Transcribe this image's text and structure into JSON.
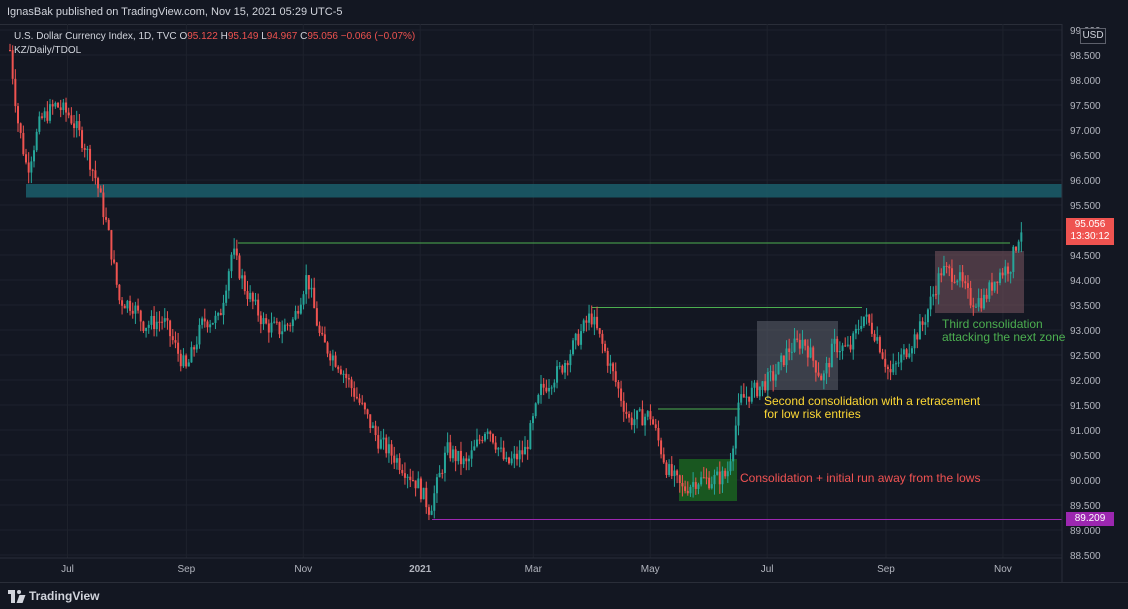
{
  "header": {
    "publisher": "IgnasBak published on TradingView.com, Nov 15, 2021 05:29 UTC-5"
  },
  "legend": {
    "title": "U.S. Dollar Currency Index, 1D, TVC",
    "o_label": "O",
    "o_value": "95.122",
    "h_label": "H",
    "h_value": "95.149",
    "l_label": "L",
    "l_value": "94.967",
    "c_label": "C",
    "c_value": "95.056",
    "change": "−0.066 (−0.07%)",
    "indicator": "KZ/Daily/TDOL"
  },
  "axis": {
    "currency": "USD"
  },
  "price_tag": {
    "price": "95.056",
    "countdown": "13:30:12"
  },
  "low_tag": {
    "price": "89.209"
  },
  "annotations": {
    "first": "Consolidation + initial run away from the lows",
    "second_line1": "Second consolidation with a retracement",
    "second_line2": "for low risk entries",
    "third_line1": "Third consolidation",
    "third_line2": "attacking the next zone"
  },
  "footer": {
    "brand": "TradingView"
  },
  "colors": {
    "up": "#26a69a",
    "down": "#ef5350",
    "zone": "#1b5e6b",
    "level": "#4caf50",
    "low": "#9c27b0",
    "ann_first": "#f05252",
    "ann_second": "#fdd835",
    "ann_third": "#4caf50"
  },
  "chart_data": {
    "type": "candlestick",
    "y_ticks": [
      "99.000",
      "98.500",
      "98.000",
      "97.500",
      "97.000",
      "96.500",
      "96.000",
      "95.500",
      "95.000",
      "94.500",
      "94.000",
      "93.500",
      "93.000",
      "92.500",
      "92.000",
      "91.500",
      "91.000",
      "90.500",
      "90.000",
      "89.500",
      "89.000",
      "88.500"
    ],
    "x_ticks": [
      "Jul",
      "Sep",
      "Nov",
      "2021",
      "Mar",
      "May",
      "Jul",
      "Sep",
      "Nov"
    ],
    "ylim": [
      88.4,
      99.2
    ],
    "close_path": [
      [
        "2020-06-01",
        98.6
      ],
      [
        "2020-06-05",
        97.2
      ],
      [
        "2020-06-10",
        96.2
      ],
      [
        "2020-06-17",
        97.2
      ],
      [
        "2020-06-25",
        97.5
      ],
      [
        "2020-07-02",
        97.3
      ],
      [
        "2020-07-10",
        96.7
      ],
      [
        "2020-07-16",
        96.0
      ],
      [
        "2020-07-22",
        95.0
      ],
      [
        "2020-07-28",
        93.6
      ],
      [
        "2020-08-04",
        93.5
      ],
      [
        "2020-08-10",
        93.1
      ],
      [
        "2020-08-20",
        93.2
      ],
      [
        "2020-08-27",
        92.6
      ],
      [
        "2020-09-01",
        92.2
      ],
      [
        "2020-09-10",
        93.2
      ],
      [
        "2020-09-18",
        93.2
      ],
      [
        "2020-09-25",
        94.6
      ],
      [
        "2020-10-02",
        93.8
      ],
      [
        "2020-10-12",
        93.1
      ],
      [
        "2020-10-20",
        93.0
      ],
      [
        "2020-10-27",
        93.2
      ],
      [
        "2020-11-03",
        94.1
      ],
      [
        "2020-11-10",
        92.8
      ],
      [
        "2020-11-20",
        92.3
      ],
      [
        "2020-12-01",
        91.5
      ],
      [
        "2020-12-10",
        90.8
      ],
      [
        "2020-12-20",
        90.4
      ],
      [
        "2020-12-31",
        89.9
      ],
      [
        "2021-01-06",
        89.4
      ],
      [
        "2021-01-15",
        90.6
      ],
      [
        "2021-01-25",
        90.3
      ],
      [
        "2021-02-05",
        91.1
      ],
      [
        "2021-02-15",
        90.3
      ],
      [
        "2021-02-25",
        90.6
      ],
      [
        "2021-03-05",
        91.8
      ],
      [
        "2021-03-15",
        92.2
      ],
      [
        "2021-03-31",
        93.3
      ],
      [
        "2021-04-08",
        92.5
      ],
      [
        "2021-04-20",
        91.2
      ],
      [
        "2021-05-01",
        91.3
      ],
      [
        "2021-05-10",
        90.2
      ],
      [
        "2021-05-18",
        89.8
      ],
      [
        "2021-05-25",
        90.0
      ],
      [
        "2021-06-02",
        90.0
      ],
      [
        "2021-06-10",
        90.1
      ],
      [
        "2021-06-17",
        91.6
      ],
      [
        "2021-06-25",
        91.8
      ],
      [
        "2021-07-05",
        92.1
      ],
      [
        "2021-07-12",
        92.6
      ],
      [
        "2021-07-20",
        92.8
      ],
      [
        "2021-07-30",
        92.0
      ],
      [
        "2021-08-05",
        92.7
      ],
      [
        "2021-08-13",
        92.6
      ],
      [
        "2021-08-20",
        93.3
      ],
      [
        "2021-08-27",
        92.9
      ],
      [
        "2021-09-03",
        92.1
      ],
      [
        "2021-09-10",
        92.5
      ],
      [
        "2021-09-20",
        93.1
      ],
      [
        "2021-09-30",
        94.2
      ],
      [
        "2021-10-08",
        94.1
      ],
      [
        "2021-10-15",
        93.6
      ],
      [
        "2021-10-22",
        93.6
      ],
      [
        "2021-10-29",
        94.1
      ],
      [
        "2021-11-05",
        94.3
      ],
      [
        "2021-11-10",
        95.0
      ],
      [
        "2021-11-12",
        95.1
      ]
    ]
  }
}
